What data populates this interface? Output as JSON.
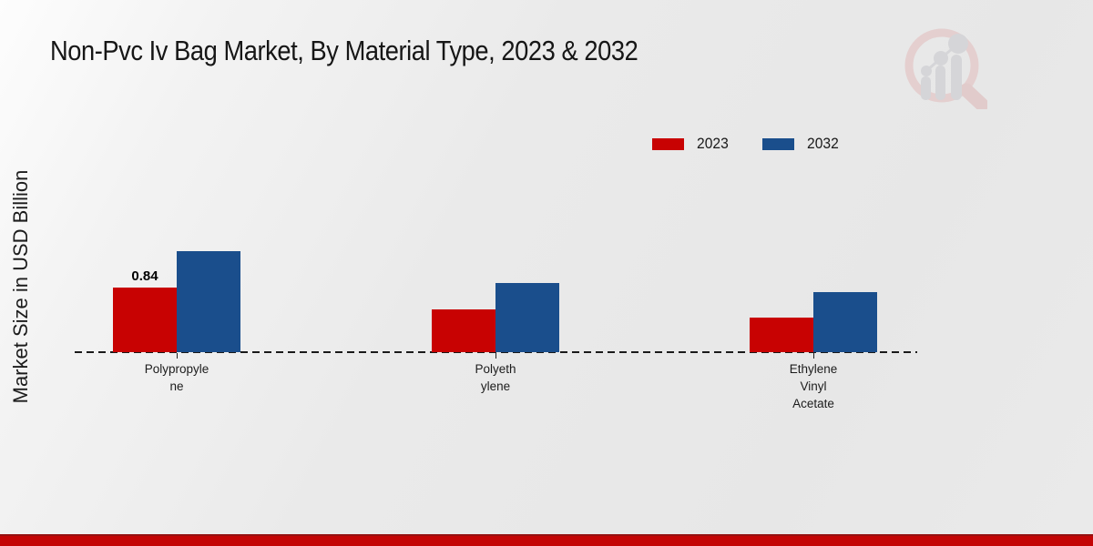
{
  "title": "Non-Pvc Iv Bag Market, By Material Type, 2023 & 2032",
  "ylabel": "Market Size in USD Billion",
  "colors": {
    "series_2023": "#c80202",
    "series_2032": "#1a4e8c",
    "footer_bar": "#c30505",
    "baseline": "#1a1a1a"
  },
  "chart_data": {
    "type": "bar",
    "title": "Non-Pvc Iv Bag Market, By Material Type, 2023 & 2032",
    "xlabel": "",
    "ylabel": "Market Size in USD Billion",
    "ylim": [
      0,
      1.5
    ],
    "grid": false,
    "legend_position": "top-right",
    "baseline_style": "dashed",
    "categories": [
      {
        "name": "Polypropylene",
        "display": "Polypropyle\nne"
      },
      {
        "name": "Polyethylene",
        "display": "Polyeth\nylene"
      },
      {
        "name": "Ethylene Vinyl Acetate",
        "display": "Ethylene\nVinyl\nAcetate"
      }
    ],
    "series": [
      {
        "name": "2023",
        "color": "#c80202",
        "values": [
          0.84,
          0.55,
          0.45
        ],
        "labels": [
          "0.84",
          "",
          ""
        ]
      },
      {
        "name": "2032",
        "color": "#1a4e8c",
        "values": [
          1.31,
          0.89,
          0.78
        ],
        "labels": [
          "",
          "",
          ""
        ]
      }
    ]
  },
  "branding": {
    "logo_icon": "magnifier-bar-chart-logo"
  }
}
